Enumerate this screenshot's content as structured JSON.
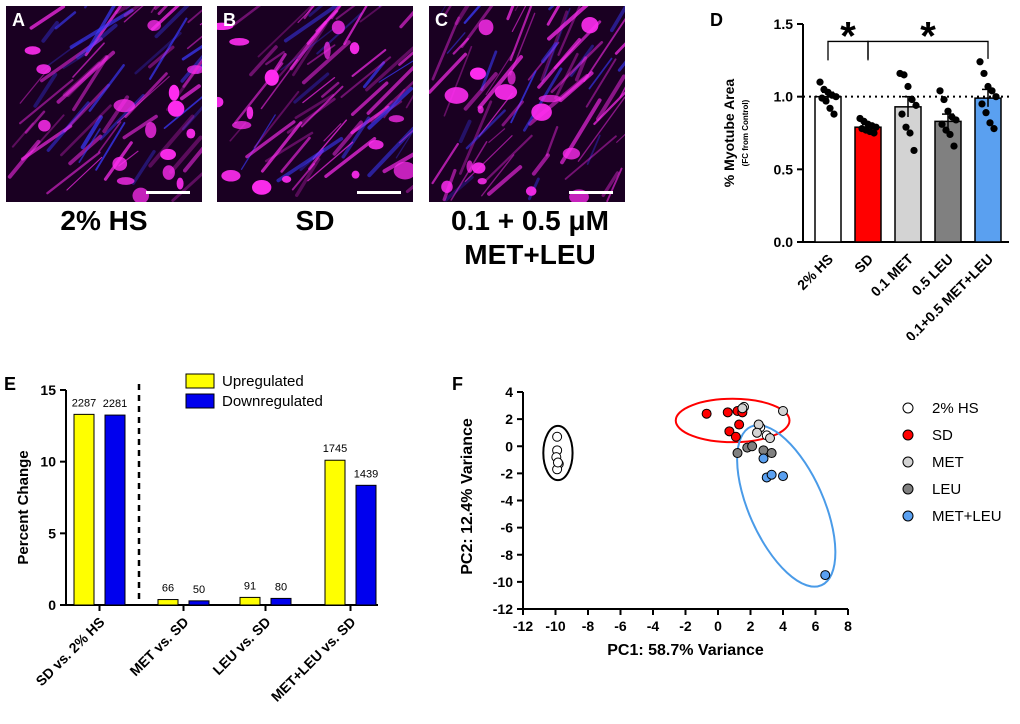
{
  "micrographs": [
    {
      "letter": "A",
      "caption": "2% HS"
    },
    {
      "letter": "B",
      "caption": "SD"
    },
    {
      "letter": "C",
      "caption_line1": "0.1 + 0.5 μM",
      "caption_line2": "MET+LEU"
    }
  ],
  "colors": {
    "hs": "#ffffff",
    "sd": "#ff0000",
    "met": "#d3d3d3",
    "leu": "#808080",
    "metleu": "#5aa0f0",
    "upregulated": "#ffff00",
    "downregulated": "#0000ee",
    "micro_magenta": "#ff2cf0",
    "micro_blue": "#3a3aff"
  },
  "chart_data": [
    {
      "panel": "D",
      "type": "bar",
      "ylabel": "% Myotube Area",
      "ylabel_sub": "(FC from Control)",
      "ylim": [
        0,
        1.5
      ],
      "yticks": [
        "0.0",
        "0.5",
        "1.0",
        "1.5"
      ],
      "reference_line": 1.0,
      "categories": [
        "2% HS",
        "SD",
        "0.1 MET",
        "0.5 LEU",
        "0.1+0.5 MET+LEU"
      ],
      "values": [
        1.0,
        0.79,
        0.93,
        0.83,
        0.99
      ],
      "errors": [
        0.03,
        0.02,
        0.07,
        0.05,
        0.06
      ],
      "points": [
        [
          1.1,
          1.05,
          1.03,
          1.01,
          1.0,
          0.99,
          0.97,
          0.92,
          0.88
        ],
        [
          0.85,
          0.83,
          0.81,
          0.8,
          0.79,
          0.78,
          0.77,
          0.76,
          0.75
        ],
        [
          1.16,
          1.15,
          1.07,
          0.98,
          0.94,
          0.88,
          0.79,
          0.75,
          0.63
        ],
        [
          1.04,
          0.98,
          0.9,
          0.86,
          0.84,
          0.81,
          0.77,
          0.74,
          0.66
        ],
        [
          1.24,
          1.16,
          1.07,
          1.04,
          1.0,
          0.95,
          0.89,
          0.82,
          0.78
        ]
      ],
      "significance": [
        {
          "from": 0,
          "to": 1,
          "label": "*"
        },
        {
          "from": 1,
          "to": 4,
          "label": "*"
        }
      ]
    },
    {
      "panel": "E",
      "type": "bar",
      "ylabel": "Percent Change",
      "ylim": [
        0,
        15
      ],
      "yticks": [
        "0",
        "5",
        "10",
        "15"
      ],
      "categories": [
        "SD vs. 2% HS",
        "MET vs. SD",
        "LEU vs. SD",
        "MET+LEU vs. SD"
      ],
      "series": [
        {
          "name": "Upregulated",
          "values": [
            13.3,
            0.38,
            0.53,
            10.1
          ],
          "labels": [
            "2287",
            "66",
            "91",
            "1745"
          ]
        },
        {
          "name": "Downregulated",
          "values": [
            13.25,
            0.29,
            0.46,
            8.35
          ],
          "labels": [
            "2281",
            "50",
            "80",
            "1439"
          ]
        }
      ],
      "legend": "top-center"
    },
    {
      "panel": "F",
      "type": "scatter",
      "xlabel": "PC1: 58.7% Variance",
      "ylabel": "PC2: 12.4% Variance",
      "xlim": [
        -12,
        8
      ],
      "ylim": [
        -12,
        4
      ],
      "xticks": [
        "-12",
        "-10",
        "-8",
        "-6",
        "-4",
        "-2",
        "0",
        "2",
        "4",
        "6",
        "8"
      ],
      "yticks": [
        "-12",
        "-10",
        "-8",
        "-6",
        "-4",
        "-2",
        "0",
        "2",
        "4"
      ],
      "legend": "right",
      "series": [
        {
          "name": "2% HS",
          "points": [
            [
              -9.9,
              0.7
            ],
            [
              -9.9,
              -0.3
            ],
            [
              -9.95,
              -0.8
            ],
            [
              -9.8,
              -1.3
            ],
            [
              -9.9,
              -1.7
            ],
            [
              -9.85,
              -1.2
            ],
            [
              1.6,
              2.9
            ],
            [
              2.6,
              1.4
            ],
            [
              3.0,
              0.8
            ]
          ]
        },
        {
          "name": "SD",
          "points": [
            [
              -0.7,
              2.4
            ],
            [
              0.6,
              2.5
            ],
            [
              1.2,
              2.6
            ],
            [
              1.5,
              2.5
            ],
            [
              1.3,
              1.6
            ],
            [
              0.7,
              1.1
            ],
            [
              1.1,
              0.7
            ]
          ]
        },
        {
          "name": "MET",
          "points": [
            [
              1.5,
              2.8
            ],
            [
              2.5,
              1.6
            ],
            [
              3.2,
              0.6
            ],
            [
              4.0,
              2.6
            ],
            [
              2.4,
              1.0
            ]
          ]
        },
        {
          "name": "LEU",
          "points": [
            [
              1.2,
              -0.5
            ],
            [
              1.8,
              -0.1
            ],
            [
              2.1,
              0.0
            ],
            [
              2.8,
              -0.3
            ],
            [
              3.3,
              -0.5
            ]
          ]
        },
        {
          "name": "MET+LEU",
          "points": [
            [
              2.8,
              -0.9
            ],
            [
              3.0,
              -2.3
            ],
            [
              3.3,
              -2.1
            ],
            [
              4.0,
              -2.2
            ],
            [
              6.6,
              -9.5
            ]
          ]
        }
      ],
      "ellipses": [
        {
          "group": "2% HS",
          "cx": -9.85,
          "cy": -0.5,
          "rx": 0.9,
          "ry": 2.0,
          "angle": 0,
          "color": "#000000"
        },
        {
          "group": "SD",
          "cx": 0.9,
          "cy": 1.9,
          "rx": 3.5,
          "ry": 1.6,
          "angle": 0,
          "color": "#ff0000"
        },
        {
          "group": "MET+LEU",
          "cx": 4.2,
          "cy": -4.4,
          "rx": 2.3,
          "ry": 6.4,
          "angle": -24,
          "color": "#4a9be8"
        }
      ]
    }
  ]
}
